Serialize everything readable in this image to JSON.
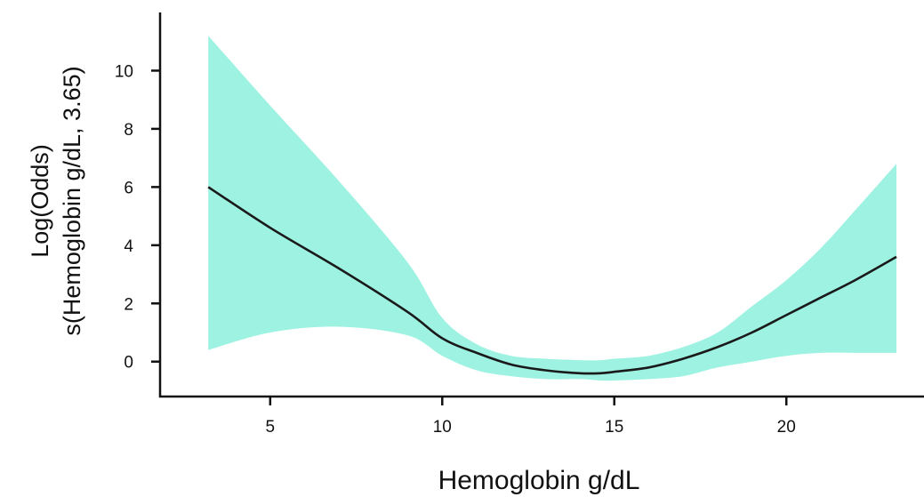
{
  "chart_data": {
    "type": "line",
    "title": "",
    "xlabel": "Hemoglobin g/dL",
    "ylabel_line1": "Log(Odds)",
    "ylabel_line2": "s(Hemoglobin g/dL, 3.65)",
    "xlim": [
      1.8,
      24.0
    ],
    "ylim": [
      -1.2,
      12.0
    ],
    "xticks": [
      5,
      10,
      15,
      20
    ],
    "yticks": [
      0,
      2,
      4,
      6,
      8,
      10
    ],
    "xtick_labels": [
      "5",
      "10",
      "15",
      "20"
    ],
    "ytick_labels": [
      "0",
      "2",
      "4",
      "6",
      "8",
      "10"
    ],
    "grid": false,
    "series": [
      {
        "kind": "line",
        "color": "#1a1a1a",
        "x": [
          3.2,
          5,
          7,
          9,
          10,
          11,
          12,
          13,
          14,
          14.6,
          15,
          16,
          17,
          18,
          19,
          20,
          21,
          22,
          23.2
        ],
        "y": [
          6.0,
          4.6,
          3.2,
          1.7,
          0.8,
          0.3,
          -0.1,
          -0.3,
          -0.4,
          -0.4,
          -0.35,
          -0.2,
          0.1,
          0.5,
          1.0,
          1.6,
          2.2,
          2.8,
          3.6
        ]
      },
      {
        "kind": "band",
        "color": "#9df2e2",
        "x": [
          3.2,
          5,
          7,
          9,
          10,
          11,
          12,
          13,
          14,
          14.6,
          15,
          16,
          17,
          18,
          19,
          20,
          21,
          22,
          23.2
        ],
        "lower": [
          0.4,
          1.0,
          1.2,
          0.9,
          0.2,
          -0.3,
          -0.5,
          -0.6,
          -0.6,
          -0.65,
          -0.65,
          -0.6,
          -0.5,
          -0.2,
          0.0,
          0.2,
          0.3,
          0.3,
          0.3
        ],
        "upper": [
          11.2,
          8.8,
          6.2,
          3.4,
          1.5,
          0.6,
          0.2,
          0.1,
          0.05,
          0.05,
          0.1,
          0.2,
          0.5,
          1.0,
          1.9,
          2.8,
          3.9,
          5.2,
          6.8
        ]
      }
    ]
  }
}
